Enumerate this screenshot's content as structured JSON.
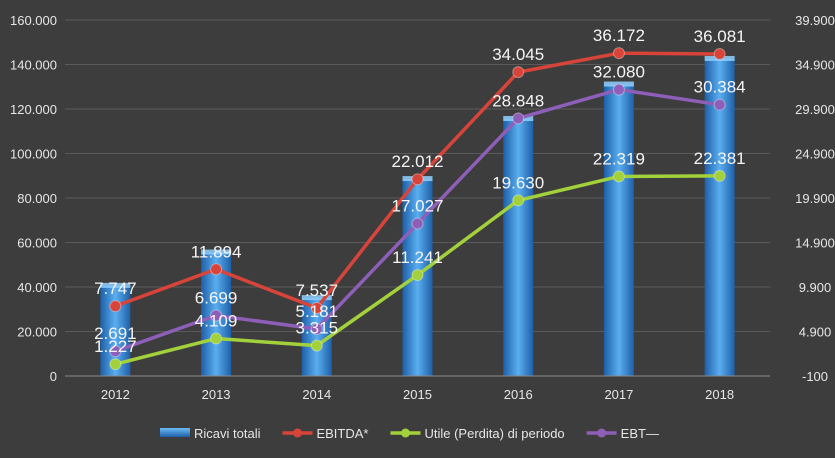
{
  "chart_data": {
    "type": "bar",
    "categories": [
      "2012",
      "2013",
      "2014",
      "2015",
      "2016",
      "2017",
      "2018"
    ],
    "y_left": {
      "ticks": [
        "0",
        "20.000",
        "40.000",
        "60.000",
        "80.000",
        "100.000",
        "120.000",
        "140.000",
        "160.000"
      ],
      "ylim": [
        0,
        160000
      ]
    },
    "y_right": {
      "ticks": [
        "-100",
        "4.900",
        "9.900",
        "14.900",
        "19.900",
        "24.900",
        "29.900",
        "34.900",
        "39.900"
      ],
      "ylim": [
        -100,
        39900
      ]
    },
    "grid": true,
    "legend_position": "bottom",
    "series": [
      {
        "name": "Ricavi totali",
        "type": "bar",
        "axis": "left",
        "color": "#3b8fd9",
        "values": [
          40500,
          55500,
          35000,
          88500,
          115500,
          131000,
          142500
        ]
      },
      {
        "name": "EBITDA*",
        "type": "line",
        "axis": "right",
        "color": "#d9443a",
        "values": [
          7747,
          11894,
          7537,
          22012,
          34045,
          36172,
          36081
        ],
        "labels": [
          "7.747",
          "11.894",
          "7.537",
          "22.012",
          "34.045",
          "36.172",
          "36.081"
        ]
      },
      {
        "name": "Utile (Perdita) di periodo",
        "type": "line",
        "axis": "right",
        "color": "#a3d13b",
        "values": [
          1227,
          4109,
          3315,
          11241,
          19630,
          22319,
          22381
        ],
        "labels": [
          "1.227",
          "4.109",
          "3.315",
          "11.241",
          "19.630",
          "22.319",
          "22.381"
        ]
      },
      {
        "name": "EBT—",
        "type": "line",
        "axis": "right",
        "color": "#8e5fb8",
        "values": [
          2691,
          6699,
          5181,
          17027,
          28848,
          32080,
          30384
        ],
        "labels": [
          "2.691",
          "6.699",
          "5.181",
          "17.027",
          "28.848",
          "32.080",
          "30.384"
        ]
      }
    ]
  }
}
